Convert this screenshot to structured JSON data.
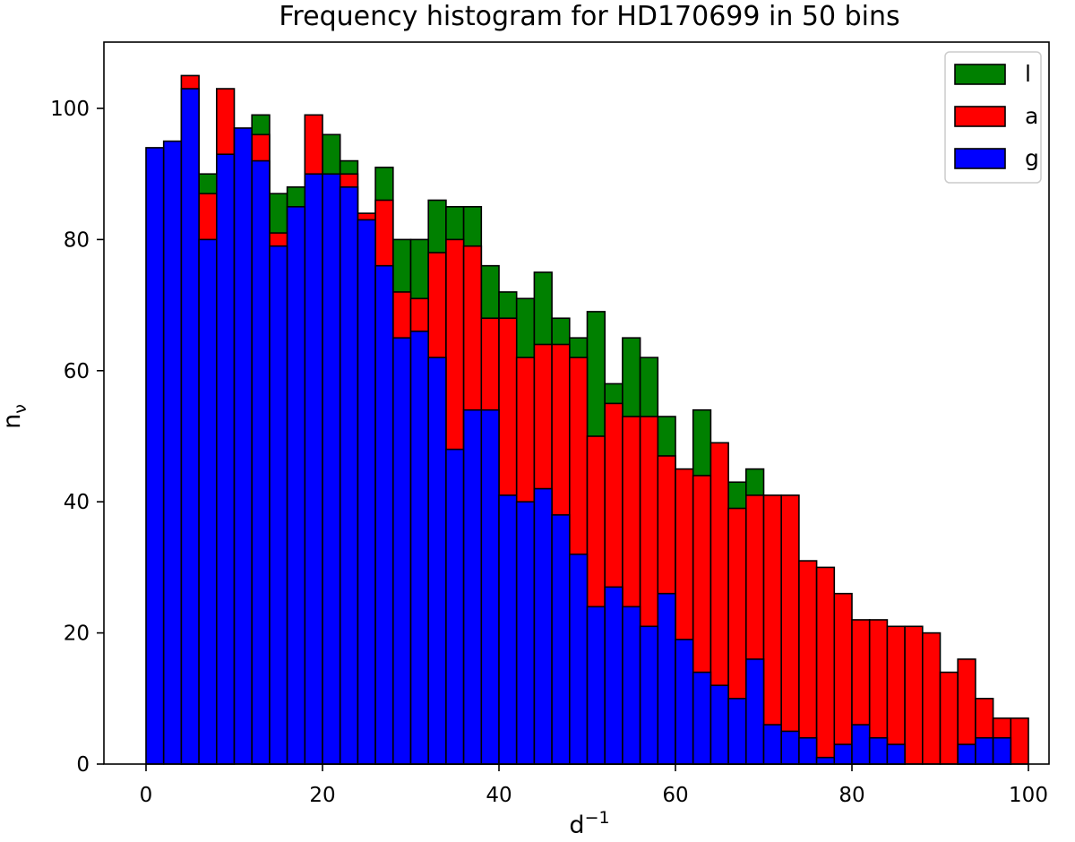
{
  "chart_data": {
    "type": "bar",
    "stacked": true,
    "title": "Frequency histogram for HD170699 in 50 bins",
    "xlabel": "d",
    "xlabel_sup": "−1",
    "ylabel": "n",
    "ylabel_sub": "ν",
    "xlim": [
      -9,
      105
    ],
    "ylim": [
      0,
      110
    ],
    "xticks": [
      0,
      20,
      40,
      60,
      80,
      100
    ],
    "yticks": [
      0,
      20,
      40,
      60,
      80,
      100
    ],
    "bin_edges_start": 0,
    "bin_width": 2,
    "legend_position": "top-right",
    "legend_labels": [
      "l",
      "a",
      "g"
    ],
    "series": [
      {
        "name": "g",
        "color": "#0000ff",
        "values": [
          94,
          95,
          103,
          80,
          93,
          97,
          92,
          79,
          85,
          90,
          90,
          88,
          83,
          76,
          65,
          66,
          62,
          48,
          54,
          54,
          41,
          40,
          42,
          38,
          32,
          24,
          27,
          24,
          21,
          26,
          19,
          14,
          12,
          10,
          16,
          6,
          5,
          4,
          1,
          3,
          6,
          4,
          3,
          0,
          0,
          0,
          3,
          4,
          4,
          0
        ]
      },
      {
        "name": "a",
        "color": "#ff0000",
        "values": [
          0,
          0,
          2,
          7,
          10,
          0,
          4,
          2,
          0,
          9,
          0,
          2,
          1,
          10,
          7,
          5,
          16,
          32,
          25,
          14,
          27,
          22,
          22,
          26,
          30,
          26,
          28,
          29,
          32,
          21,
          26,
          30,
          37,
          29,
          25,
          35,
          36,
          27,
          29,
          23,
          16,
          18,
          18,
          21,
          20,
          14,
          13,
          6,
          3,
          7
        ]
      },
      {
        "name": "l",
        "color": "#008000",
        "values": [
          0,
          0,
          0,
          3,
          0,
          0,
          3,
          6,
          3,
          0,
          6,
          2,
          0,
          5,
          8,
          9,
          8,
          5,
          6,
          8,
          4,
          9,
          11,
          4,
          3,
          19,
          3,
          12,
          9,
          6,
          0,
          10,
          0,
          4,
          4,
          0,
          0,
          0,
          0,
          0,
          0,
          0,
          0,
          0,
          0,
          0,
          0,
          0,
          0,
          0
        ]
      }
    ]
  }
}
